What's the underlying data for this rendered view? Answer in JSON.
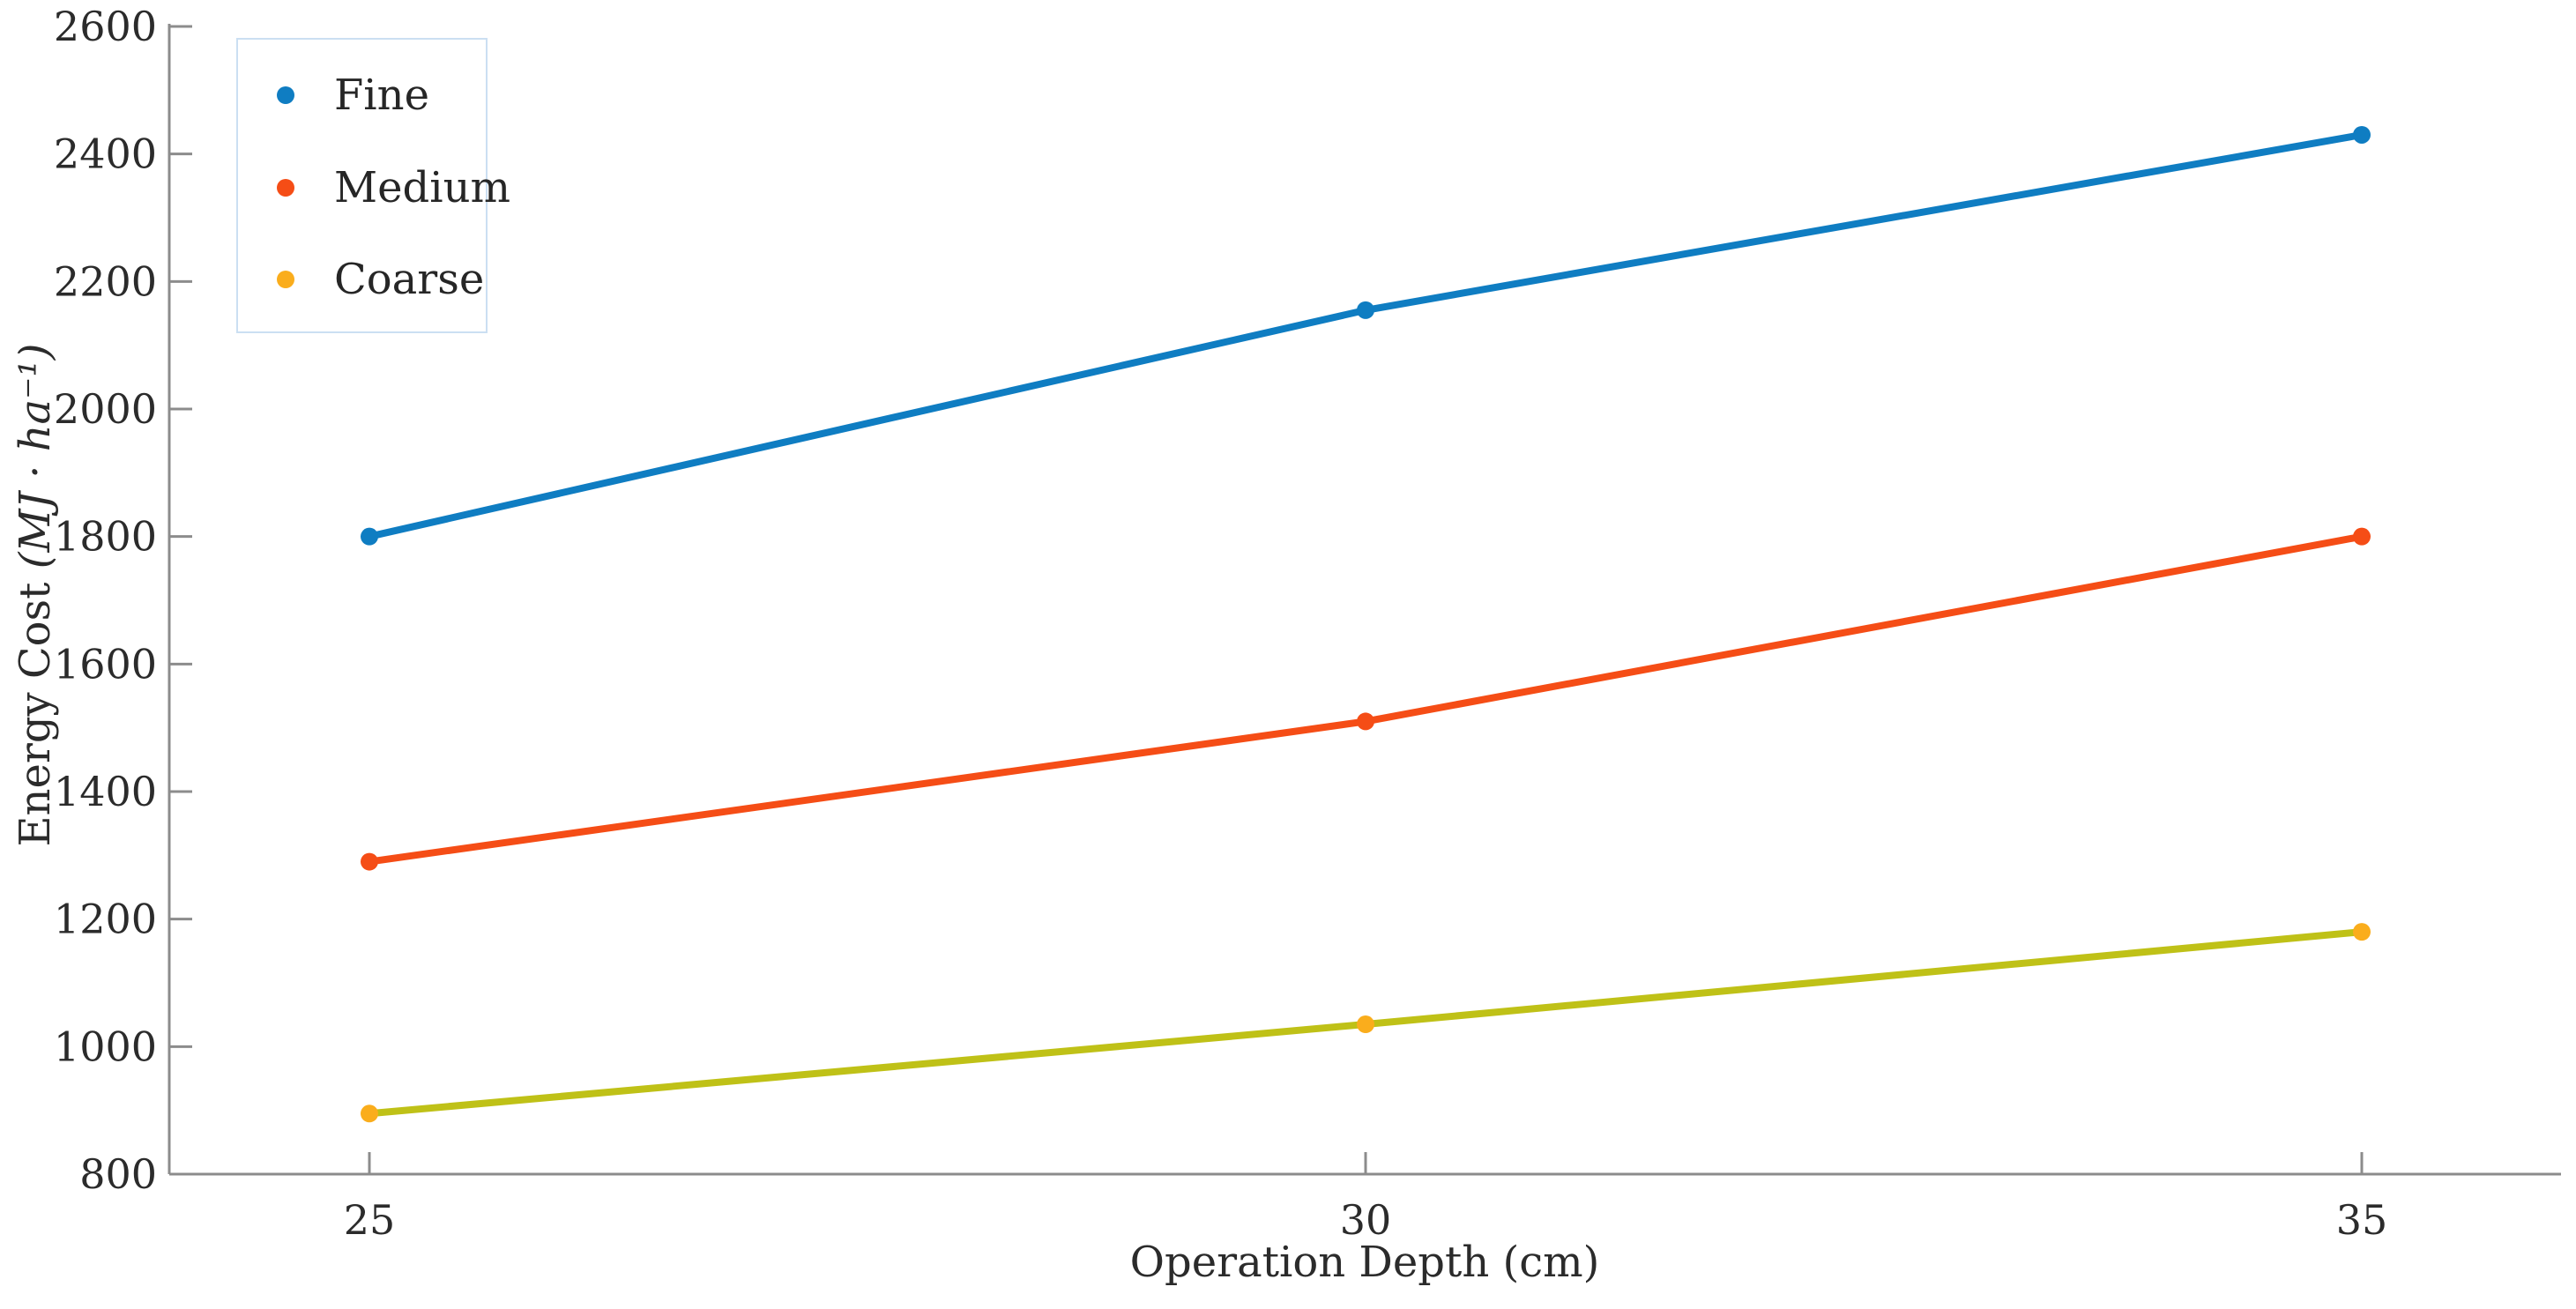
{
  "chart_data": {
    "type": "line",
    "title": "",
    "xlabel": "Operation Depth (cm)",
    "ylabel": "Energy Cost (MJ · ha⁻¹)",
    "ylabel_main": "Energy Cost ",
    "ylabel_unit": "(MJ · ha⁻¹)",
    "x": [
      25,
      30,
      35
    ],
    "x_tick_labels": [
      "25",
      "30",
      "35"
    ],
    "y_ticks": [
      800,
      1000,
      1200,
      1400,
      1600,
      1800,
      2000,
      2200,
      2400,
      2600
    ],
    "y_tick_labels": [
      "800",
      "1000",
      "1200",
      "1400",
      "1600",
      "1800",
      "2000",
      "2200",
      "2400",
      "2600"
    ],
    "xlim": [
      24,
      36
    ],
    "ylim": [
      800,
      2600
    ],
    "grid": false,
    "legend_position": "top-left",
    "series": [
      {
        "name": "Fine",
        "values": [
          1800,
          2155,
          2430
        ],
        "line_color": "#0f7dc2",
        "marker_color": "#0f7dc2"
      },
      {
        "name": "Medium",
        "values": [
          1290,
          1510,
          1800
        ],
        "line_color": "#f54d16",
        "marker_color": "#f54d16"
      },
      {
        "name": "Coarse",
        "values": [
          895,
          1035,
          1180
        ],
        "line_color": "#bfc117",
        "marker_color": "#faad1c"
      }
    ],
    "colors": {
      "axis": "#8c8c8c",
      "tick_label": "#2b2b2b",
      "legend_border": "#cbdff2",
      "background": "#ffffff"
    }
  }
}
